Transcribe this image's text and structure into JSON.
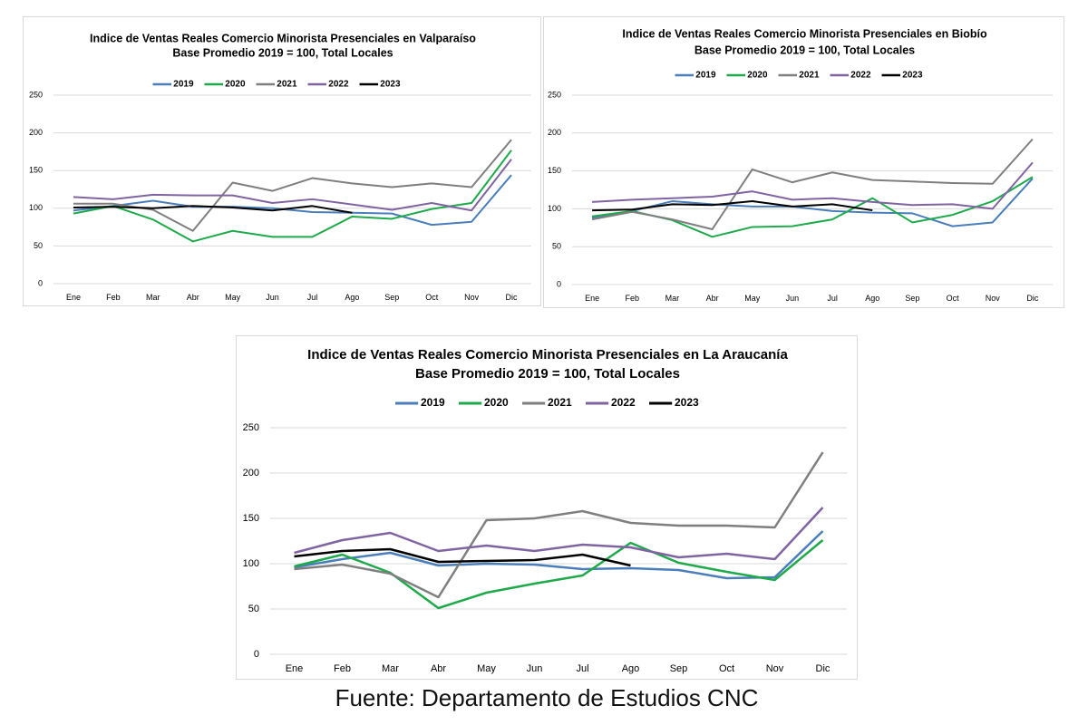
{
  "chart_data": [
    {
      "type": "line",
      "title": "Indice de Ventas Reales Comercio Minorista Presenciales en Valparaíso",
      "subtitle": "Base Promedio 2019 = 100, Total Locales",
      "categories": [
        "Ene",
        "Feb",
        "Mar",
        "Abr",
        "May",
        "Jun",
        "Jul",
        "Ago",
        "Sep",
        "Oct",
        "Nov",
        "Dic"
      ],
      "ylim": [
        0,
        250
      ],
      "yticks": [
        0,
        50,
        100,
        150,
        200,
        250
      ],
      "grid": true,
      "legend": "top",
      "series": [
        {
          "name": "2019",
          "color": "#4a7ebb",
          "values": [
            97,
            103,
            110,
            102,
            102,
            100,
            95,
            94,
            93,
            78,
            82,
            144
          ]
        },
        {
          "name": "2020",
          "color": "#1eaa4a",
          "values": [
            93,
            103,
            85,
            56,
            70,
            62,
            62,
            89,
            86,
            99,
            107,
            177
          ]
        },
        {
          "name": "2021",
          "color": "#7f7f7f",
          "values": [
            106,
            106,
            98,
            70,
            134,
            123,
            140,
            133,
            128,
            133,
            128,
            191
          ]
        },
        {
          "name": "2022",
          "color": "#8064a2",
          "values": [
            115,
            112,
            118,
            117,
            117,
            107,
            112,
            105,
            98,
            107,
            97,
            165
          ]
        },
        {
          "name": "2023",
          "color": "#000000",
          "values": [
            101,
            102,
            100,
            103,
            101,
            97,
            103,
            94,
            null,
            null,
            null,
            null
          ]
        }
      ]
    },
    {
      "type": "line",
      "title": "Indice de Ventas Reales Comercio Minorista Presenciales en Biobío",
      "subtitle": "Base Promedio 2019 = 100, Total Locales",
      "categories": [
        "Ene",
        "Feb",
        "Mar",
        "Abr",
        "May",
        "Jun",
        "Jul",
        "Ago",
        "Sep",
        "Oct",
        "Nov",
        "Dic"
      ],
      "ylim": [
        0,
        250
      ],
      "yticks": [
        0,
        50,
        100,
        150,
        200,
        250
      ],
      "grid": true,
      "legend": "top",
      "series": [
        {
          "name": "2019",
          "color": "#4a7ebb",
          "values": [
            88,
            97,
            110,
            106,
            103,
            103,
            97,
            95,
            94,
            77,
            82,
            140
          ]
        },
        {
          "name": "2020",
          "color": "#1eaa4a",
          "values": [
            90,
            97,
            85,
            63,
            76,
            77,
            86,
            114,
            82,
            92,
            110,
            142
          ]
        },
        {
          "name": "2021",
          "color": "#7f7f7f",
          "values": [
            86,
            96,
            86,
            73,
            152,
            135,
            148,
            138,
            136,
            134,
            133,
            192
          ]
        },
        {
          "name": "2022",
          "color": "#8064a2",
          "values": [
            109,
            112,
            114,
            116,
            123,
            112,
            114,
            109,
            105,
            106,
            100,
            161
          ]
        },
        {
          "name": "2023",
          "color": "#000000",
          "values": [
            98,
            99,
            106,
            105,
            110,
            103,
            106,
            98,
            null,
            null,
            null,
            null
          ]
        }
      ]
    },
    {
      "type": "line",
      "title": "Indice de Ventas Reales Comercio Minorista Presenciales en La Araucanía",
      "subtitle": "Base Promedio 2019 = 100, Total Locales",
      "categories": [
        "Ene",
        "Feb",
        "Mar",
        "Abr",
        "May",
        "Jun",
        "Jul",
        "Ago",
        "Sep",
        "Oct",
        "Nov",
        "Dic"
      ],
      "ylim": [
        0,
        250
      ],
      "yticks": [
        0,
        50,
        100,
        150,
        200,
        250
      ],
      "grid": true,
      "legend": "top",
      "series": [
        {
          "name": "2019",
          "color": "#4a7ebb",
          "values": [
            96,
            105,
            112,
            98,
            100,
            99,
            94,
            95,
            93,
            84,
            85,
            136
          ]
        },
        {
          "name": "2020",
          "color": "#1eaa4a",
          "values": [
            97,
            110,
            90,
            51,
            68,
            78,
            87,
            123,
            101,
            91,
            82,
            126
          ]
        },
        {
          "name": "2021",
          "color": "#7f7f7f",
          "values": [
            94,
            99,
            89,
            63,
            148,
            150,
            158,
            145,
            142,
            142,
            140,
            223
          ]
        },
        {
          "name": "2022",
          "color": "#8064a2",
          "values": [
            112,
            126,
            134,
            114,
            120,
            114,
            121,
            118,
            107,
            111,
            105,
            162
          ]
        },
        {
          "name": "2023",
          "color": "#000000",
          "values": [
            108,
            114,
            116,
            102,
            103,
            104,
            110,
            98,
            null,
            null,
            null,
            null
          ]
        }
      ]
    }
  ],
  "source": "Fuente: Departamento de Estudios CNC"
}
